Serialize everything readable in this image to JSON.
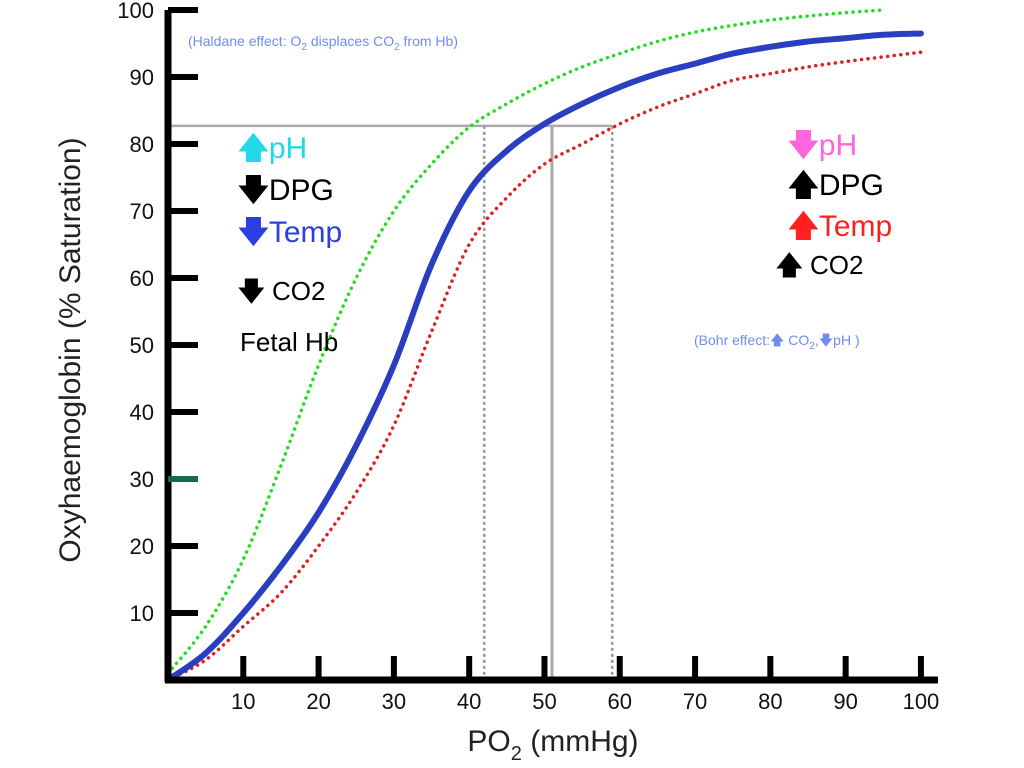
{
  "chart_data": {
    "type": "line",
    "xlabel": "PO",
    "xlabel_sub": "2",
    "xlabel_unit": " (mmHg)",
    "ylabel": "Oxyhaemoglobin (% Saturation)",
    "xlim": [
      0,
      102
    ],
    "ylim": [
      0,
      100
    ],
    "xticks": [
      10,
      20,
      30,
      40,
      50,
      60,
      70,
      80,
      90,
      100
    ],
    "yticks": [
      10,
      20,
      30,
      40,
      50,
      60,
      70,
      80,
      90,
      100
    ],
    "grid": false,
    "series": [
      {
        "style": "solid",
        "color": "#2a3fc0",
        "x": [
          0,
          5,
          10,
          15,
          20,
          25,
          30,
          35,
          40,
          45,
          50,
          55,
          60,
          65,
          70,
          75,
          80,
          85,
          90,
          95,
          100
        ],
        "y": [
          0,
          4,
          10,
          17,
          25,
          35,
          47,
          62,
          73,
          79,
          83,
          86,
          88.5,
          90.5,
          92,
          93.5,
          94.5,
          95.3,
          95.8,
          96.3,
          96.5
        ]
      },
      {
        "style": "dotted",
        "color": "#22dd22",
        "x": [
          0,
          5,
          10,
          15,
          20,
          25,
          30,
          35,
          40,
          45,
          50,
          55,
          60,
          65,
          70,
          75,
          80,
          85,
          90,
          95
        ],
        "y": [
          1,
          8,
          18,
          32,
          47,
          60,
          70,
          77,
          82.5,
          86,
          89,
          91.5,
          93.5,
          95.3,
          96.7,
          97.7,
          98.5,
          99.1,
          99.6,
          100
        ]
      },
      {
        "style": "dotted",
        "color": "#e02020",
        "x": [
          0,
          5,
          10,
          15,
          20,
          25,
          30,
          35,
          40,
          45,
          50,
          55,
          60,
          65,
          70,
          75,
          80,
          85,
          90,
          95,
          100
        ],
        "y": [
          0,
          3,
          8,
          13,
          20,
          28,
          38,
          52,
          65,
          72,
          77,
          80,
          83,
          85.5,
          87.5,
          89.5,
          90.5,
          91.5,
          92.3,
          93,
          93.7
        ]
      }
    ],
    "reference_lines": {
      "horizontal_y": 82.7,
      "vertical_x": [
        42,
        51,
        59
      ]
    },
    "annotations": {
      "left": {
        "ph": "pH",
        "dpg": "DPG",
        "temp": "Temp",
        "co2": "CO2",
        "fetal": "Fetal Hb"
      },
      "right": {
        "ph": "pH",
        "dpg": "DPG",
        "temp": "Temp",
        "co2": "CO2"
      },
      "haldane": {
        "pre": "(Haldane effect: O",
        "sub1": "2",
        "mid": " displaces CO",
        "sub2": "2",
        "post": " from Hb)"
      },
      "bohr": {
        "pre": "(Bohr effect:",
        "co2": " CO",
        "sub": "2",
        "comma": ",",
        "ph": "pH )"
      }
    },
    "colors": {
      "cyan": "#22d8e8",
      "blue": "#2a3fe0",
      "magenta": "#ff66dd",
      "red": "#ff2020",
      "black": "#000000",
      "note": "#6f8df0",
      "axis_marker": "#1a6a4a"
    }
  }
}
